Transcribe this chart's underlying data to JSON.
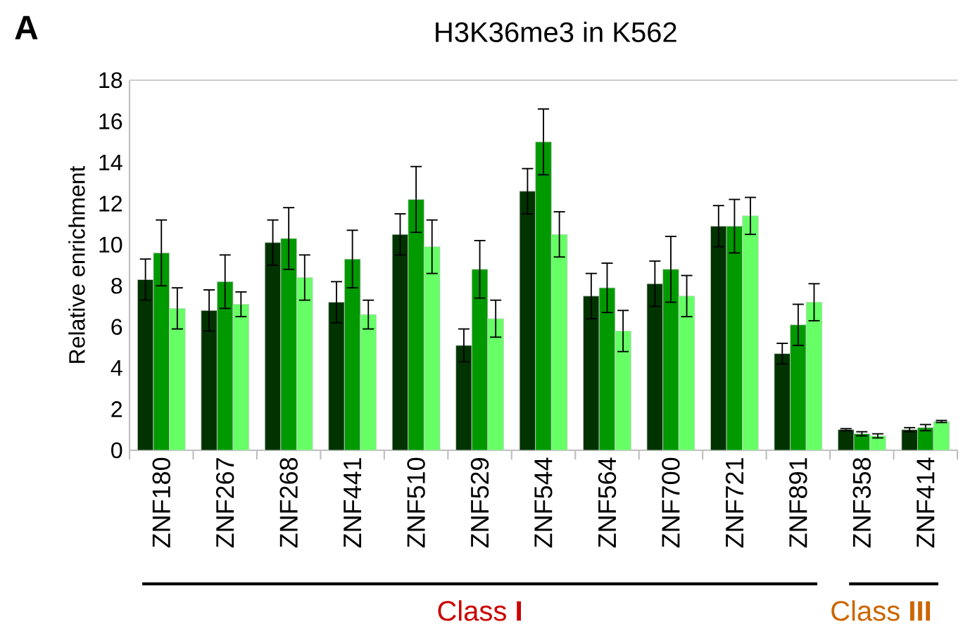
{
  "chart_data": {
    "type": "bar",
    "title": "H3K36me3 in K562",
    "ylabel": "Relative enrichment",
    "categories": [
      "ZNF180",
      "ZNF267",
      "ZNF268",
      "ZNF441",
      "ZNF510",
      "ZNF529",
      "ZNF544",
      "ZNF564",
      "ZNF700",
      "ZNF721",
      "ZNF891",
      "ZNF358",
      "ZNF414"
    ],
    "series": [
      {
        "color": "#003300",
        "values": [
          8.3,
          6.8,
          10.1,
          7.2,
          10.5,
          5.1,
          12.6,
          7.5,
          8.1,
          10.9,
          4.7,
          1.0,
          1.0
        ],
        "errors": [
          1.0,
          1.0,
          1.1,
          1.0,
          1.0,
          0.8,
          1.1,
          1.1,
          1.1,
          1.0,
          0.5,
          0.05,
          0.1
        ]
      },
      {
        "color": "#009900",
        "values": [
          9.6,
          8.2,
          10.3,
          9.3,
          12.2,
          8.8,
          15.0,
          7.9,
          8.8,
          10.9,
          6.1,
          0.8,
          1.1
        ],
        "errors": [
          1.6,
          1.3,
          1.5,
          1.4,
          1.6,
          1.4,
          1.6,
          1.2,
          1.6,
          1.3,
          1.0,
          0.1,
          0.15
        ]
      },
      {
        "color": "#66ff66",
        "values": [
          6.9,
          7.1,
          8.4,
          6.6,
          9.9,
          6.4,
          10.5,
          5.8,
          7.5,
          11.4,
          7.2,
          0.7,
          1.4
        ],
        "errors": [
          1.0,
          0.6,
          1.1,
          0.7,
          1.3,
          0.9,
          1.1,
          1.0,
          1.0,
          0.9,
          0.9,
          0.1,
          0.05
        ]
      }
    ],
    "ylim": [
      0,
      18
    ],
    "yticks": [
      0,
      2,
      4,
      6,
      8,
      10,
      12,
      14,
      16,
      18
    ],
    "grid": false,
    "annotations": [
      "A",
      "Class **I**",
      "Class **III**"
    ]
  }
}
